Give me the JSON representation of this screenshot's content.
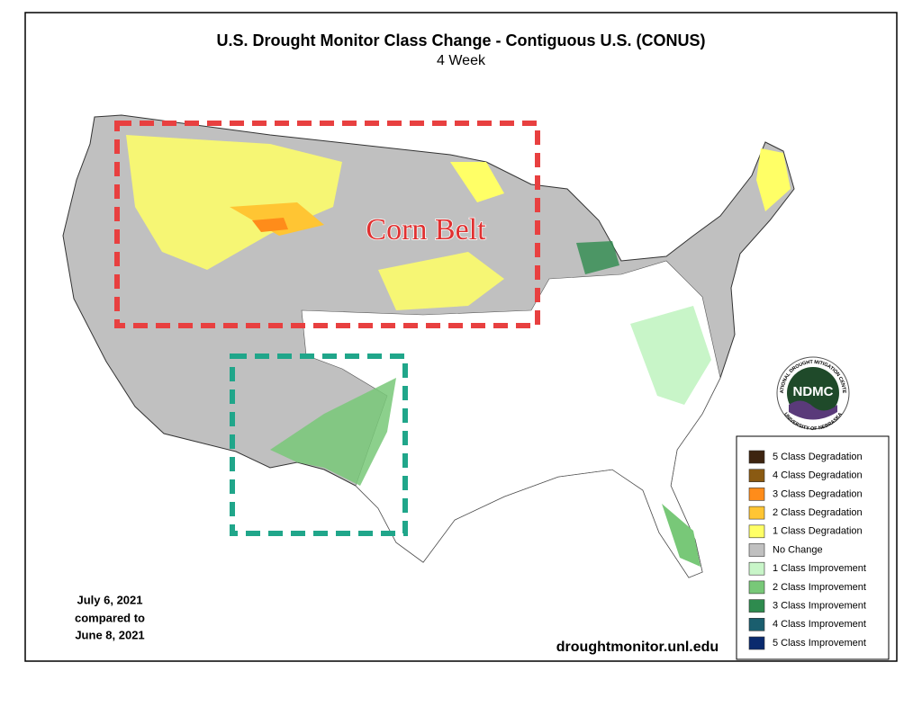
{
  "header": {
    "title": "U.S. Drought Monitor Class Change - Contiguous U.S. (CONUS)",
    "subtitle": "4 Week"
  },
  "annotation": "Corn Belt",
  "legend": {
    "items": [
      {
        "label": "5 Class Degradation",
        "color": "#3d2410"
      },
      {
        "label": "4 Class Degradation",
        "color": "#8a5a12"
      },
      {
        "label": "3 Class Degradation",
        "color": "#ff8c1a"
      },
      {
        "label": "2 Class Degradation",
        "color": "#ffc533"
      },
      {
        "label": "1 Class Degradation",
        "color": "#ffff66"
      },
      {
        "label": "No Change",
        "color": "#c0c0c0"
      },
      {
        "label": "1 Class Improvement",
        "color": "#c8f5c8"
      },
      {
        "label": "2 Class Improvement",
        "color": "#78c878"
      },
      {
        "label": "3 Class Improvement",
        "color": "#2e8b4e"
      },
      {
        "label": "4 Class Improvement",
        "color": "#1a5e6e"
      },
      {
        "label": "5 Class Improvement",
        "color": "#0a2a6e"
      }
    ]
  },
  "date_note": [
    "July 6, 2021",
    "compared to",
    "June 8, 2021"
  ],
  "source": "droughtmonitor.unl.edu",
  "logo": {
    "text": "NDMC",
    "ring_top": "NATIONAL DROUGHT MITIGATION CENTER",
    "ring_bottom": "UNIVERSITY OF NEBRASKA"
  }
}
